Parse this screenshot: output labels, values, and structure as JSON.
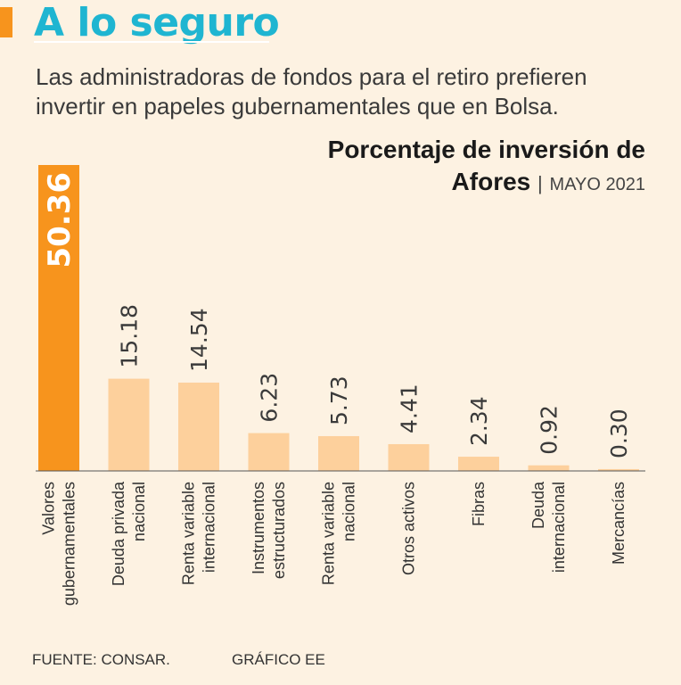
{
  "header": {
    "title": "A lo seguro",
    "description": "Las administradoras de fondos para el retiro prefieren invertir en papeles gubernamentales que en Bolsa."
  },
  "chart_data": {
    "type": "bar",
    "title_line1": "Porcentaje de inversión de",
    "title_line2": "Afores",
    "separator": "|",
    "subtitle": "MAYO 2021",
    "ylabel": "",
    "xlabel": "",
    "ylim": [
      0,
      50.36
    ],
    "grid": false,
    "categories": [
      [
        "Valores",
        "gubernamentales"
      ],
      [
        "Deuda privada",
        "nacional"
      ],
      [
        "Renta variable",
        "internacional"
      ],
      [
        "Instrumentos",
        "estructurados"
      ],
      [
        "Renta variable",
        "nacional"
      ],
      [
        "Otros activos"
      ],
      [
        "Fibras"
      ],
      [
        "Deuda",
        "internacional"
      ],
      [
        "Mercancías"
      ]
    ],
    "values": [
      50.36,
      15.18,
      14.54,
      6.23,
      5.73,
      4.41,
      2.34,
      0.92,
      0.3
    ],
    "value_labels": [
      "50.36",
      "15.18",
      "14.54",
      "6.23",
      "5.73",
      "4.41",
      "2.34",
      "0.92",
      "0.30"
    ],
    "highlight_color": "#f7941d",
    "bar_color": "#fdd09c"
  },
  "footer": {
    "source": "FUENTE: CONSAR.",
    "credit": "GRÁFICO EE"
  }
}
